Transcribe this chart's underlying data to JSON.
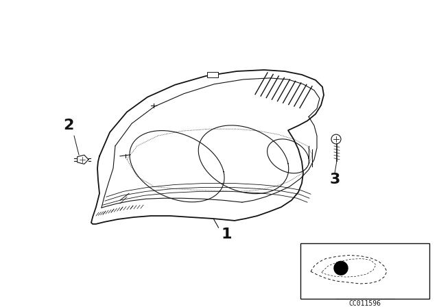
{
  "bg_color": "#ffffff",
  "line_color": "#111111",
  "fig_width": 6.4,
  "fig_height": 4.48,
  "dpi": 100,
  "watermark": "CC011596"
}
